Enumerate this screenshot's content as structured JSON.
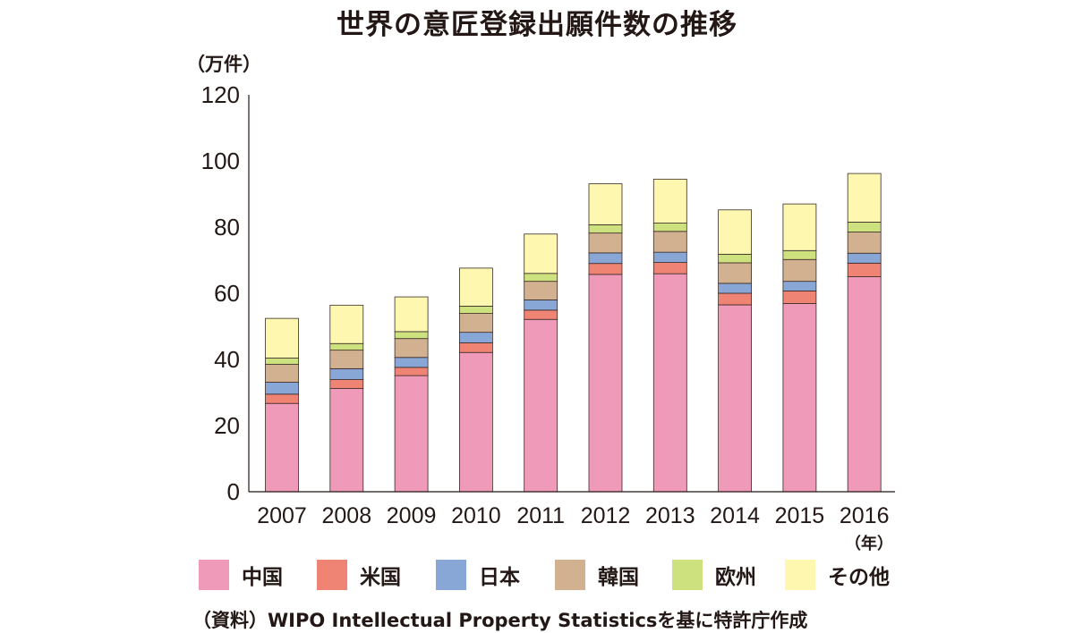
{
  "title": "世界の意匠登録出願件数の推移",
  "unit_label": "（万件）",
  "x_unit_label": "（年）",
  "source": "（資料）WIPO Intellectual Property Statisticsを基に特許庁作成",
  "chart_data": {
    "type": "bar",
    "stacked": true,
    "categories": [
      "2007",
      "2008",
      "2009",
      "2010",
      "2011",
      "2012",
      "2013",
      "2014",
      "2015",
      "2016"
    ],
    "series": [
      {
        "name": "中国",
        "color": "#f09ab9",
        "values": [
          26.7,
          31.2,
          35.1,
          42.1,
          52.1,
          65.7,
          65.9,
          56.5,
          56.9,
          65.0
        ]
      },
      {
        "name": "米国",
        "color": "#ef8474",
        "values": [
          2.8,
          2.7,
          2.5,
          2.9,
          2.8,
          3.3,
          3.4,
          3.5,
          3.8,
          4.1
        ]
      },
      {
        "name": "日本",
        "color": "#88a6d6",
        "values": [
          3.6,
          3.3,
          3.0,
          3.2,
          3.1,
          3.2,
          3.1,
          3.0,
          2.9,
          3.0
        ]
      },
      {
        "name": "韓国",
        "color": "#d2b190",
        "values": [
          5.4,
          5.6,
          5.7,
          5.7,
          5.6,
          6.0,
          6.3,
          6.2,
          6.6,
          6.4
        ]
      },
      {
        "name": "欧州",
        "color": "#cde27f",
        "values": [
          1.9,
          2.0,
          2.1,
          2.2,
          2.4,
          2.5,
          2.5,
          2.6,
          2.7,
          3.0
        ]
      },
      {
        "name": "その他",
        "color": "#fdf7b0",
        "values": [
          12.0,
          11.6,
          10.5,
          11.5,
          11.9,
          12.4,
          13.3,
          13.4,
          14.1,
          14.7
        ]
      }
    ],
    "ylim": [
      0,
      120
    ],
    "yticks": [
      0,
      20,
      40,
      60,
      80,
      100,
      120
    ],
    "grid": false,
    "legend_position": "bottom"
  }
}
